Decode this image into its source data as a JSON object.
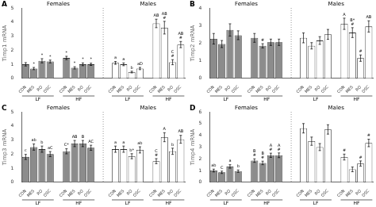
{
  "chart_data": [
    {
      "type": "bar",
      "title": "A",
      "ylabel": "Timp1 mRNA",
      "categories": [
        "CON",
        "MES",
        "RO",
        "OSC"
      ],
      "ylim": [
        0,
        5
      ],
      "yticks": [
        0,
        1,
        2,
        3,
        4,
        5
      ],
      "grid": false,
      "groups": [
        {
          "name": "Females",
          "color": "#8c8c8c",
          "edge_color": "#333333",
          "subgroups": [
            {
              "name": "LF",
              "values": [
                1.0,
                0.7,
                1.25,
                1.2
              ],
              "errors": [
                0.12,
                0.08,
                0.15,
                0.1
              ],
              "annotations": [
                null,
                "*",
                "*",
                "*"
              ]
            },
            {
              "name": "HF",
              "values": [
                1.45,
                0.75,
                1.0,
                1.0
              ],
              "errors": [
                0.12,
                0.08,
                0.1,
                0.08
              ],
              "annotations": [
                "*",
                "*",
                "*",
                "*"
              ]
            }
          ]
        },
        {
          "name": "Males",
          "color": "#ffffff",
          "edge_color": "#333333",
          "subgroups": [
            {
              "name": "LF",
              "values": [
                1.1,
                1.0,
                0.45,
                0.7
              ],
              "errors": [
                0.1,
                0.1,
                0.06,
                0.08
              ],
              "annotations": [
                "a",
                "a",
                "b",
                "aD"
              ]
            },
            {
              "name": "HF",
              "values": [
                3.9,
                3.6,
                1.15,
                2.4
              ],
              "errors": [
                0.3,
                0.45,
                0.18,
                0.22
              ],
              "annotations": [
                "AB",
                "AB\n#",
                "C\n#",
                "AB\n#"
              ]
            }
          ]
        }
      ]
    },
    {
      "type": "bar",
      "title": "B",
      "ylabel": "Timp2 mRNA",
      "categories": [
        "CON",
        "MES",
        "RO",
        "OSC"
      ],
      "ylim": [
        0,
        4
      ],
      "yticks": [
        0,
        1,
        2,
        3,
        4
      ],
      "grid": false,
      "groups": [
        {
          "name": "Females",
          "color": "#8c8c8c",
          "edge_color": "#333333",
          "subgroups": [
            {
              "name": "LF",
              "values": [
                2.25,
                1.95,
                2.75,
                2.45
              ],
              "errors": [
                0.3,
                0.2,
                0.35,
                0.25
              ],
              "annotations": [
                null,
                null,
                null,
                null
              ]
            },
            {
              "name": "HF",
              "values": [
                2.3,
                1.85,
                2.05,
                2.05
              ],
              "errors": [
                0.25,
                0.12,
                0.18,
                0.18
              ],
              "annotations": [
                null,
                "#",
                null,
                null
              ]
            }
          ]
        },
        {
          "name": "Males",
          "color": "#ffffff",
          "edge_color": "#333333",
          "subgroups": [
            {
              "name": "LF",
              "values": [
                2.3,
                1.85,
                2.15,
                2.5
              ],
              "errors": [
                0.28,
                0.18,
                0.22,
                0.28
              ],
              "annotations": [
                null,
                null,
                null,
                null
              ]
            },
            {
              "name": "HF",
              "values": [
                3.1,
                2.6,
                1.15,
                2.95
              ],
              "errors": [
                0.32,
                0.28,
                0.18,
                0.32
              ],
              "annotations": [
                "A",
                "B*\n#",
                "#",
                "AB"
              ]
            }
          ]
        }
      ]
    },
    {
      "type": "bar",
      "title": "C",
      "ylabel": "Timp3 mRNA",
      "categories": [
        "CON",
        "MES",
        "RO",
        "OSC"
      ],
      "ylim": [
        0,
        5
      ],
      "yticks": [
        0,
        1,
        2,
        3,
        4,
        5
      ],
      "grid": false,
      "groups": [
        {
          "name": "Females",
          "color": "#8c8c8c",
          "edge_color": "#333333",
          "subgroups": [
            {
              "name": "LF",
              "values": [
                1.8,
                2.5,
                2.35,
                2.0
              ],
              "errors": [
                0.18,
                0.22,
                0.22,
                0.18
              ],
              "annotations": [
                "c",
                "ab",
                "b",
                "aC"
              ]
            },
            {
              "name": "HF",
              "values": [
                2.2,
                2.75,
                2.75,
                2.45
              ],
              "errors": [
                0.18,
                0.22,
                0.22,
                0.18
              ],
              "annotations": [
                "C*",
                "AB",
                "B",
                "AC"
              ]
            }
          ]
        },
        {
          "name": "Males",
          "color": "#ffffff",
          "edge_color": "#333333",
          "subgroups": [
            {
              "name": "LF",
              "values": [
                2.35,
                2.35,
                1.85,
                2.3
              ],
              "errors": [
                0.22,
                0.22,
                0.18,
                0.22
              ],
              "annotations": [
                "a",
                "a",
                "b*",
                "ab"
              ]
            },
            {
              "name": "HF",
              "values": [
                1.5,
                3.2,
                2.2,
                3.05
              ],
              "errors": [
                0.18,
                0.32,
                0.22,
                0.28
              ],
              "annotations": [
                "C\n#",
                "A",
                "b",
                "AB"
              ]
            }
          ]
        }
      ]
    },
    {
      "type": "bar",
      "title": "D",
      "ylabel": "Timp4 mRNA",
      "categories": [
        "CON",
        "MES",
        "RO",
        "OSC"
      ],
      "ylim": [
        0,
        6
      ],
      "yticks": [
        0,
        1,
        2,
        3,
        4,
        5,
        6
      ],
      "grid": false,
      "groups": [
        {
          "name": "Females",
          "color": "#8c8c8c",
          "edge_color": "#333333",
          "subgroups": [
            {
              "name": "LF",
              "values": [
                1.0,
                0.85,
                1.35,
                0.95
              ],
              "errors": [
                0.12,
                0.1,
                0.15,
                0.1
              ],
              "annotations": [
                "ab",
                "C",
                "a",
                "b"
              ]
            },
            {
              "name": "HF",
              "values": [
                1.85,
                1.65,
                2.3,
                2.3
              ],
              "errors": [
                0.15,
                0.15,
                0.18,
                0.2
              ],
              "annotations": [
                "B\n#",
                "B\n#",
                "A\n#",
                "A\n#"
              ]
            }
          ]
        },
        {
          "name": "Males",
          "color": "#ffffff",
          "edge_color": "#333333",
          "subgroups": [
            {
              "name": "LF",
              "values": [
                4.6,
                3.5,
                3.0,
                4.5
              ],
              "errors": [
                0.4,
                0.35,
                0.3,
                0.4
              ],
              "annotations": [
                null,
                null,
                null,
                null
              ]
            },
            {
              "name": "HF",
              "values": [
                2.15,
                1.1,
                1.6,
                3.35
              ],
              "errors": [
                0.25,
                0.2,
                0.22,
                0.32
              ],
              "annotations": [
                "#",
                null,
                "#",
                "#"
              ]
            }
          ]
        }
      ]
    }
  ]
}
